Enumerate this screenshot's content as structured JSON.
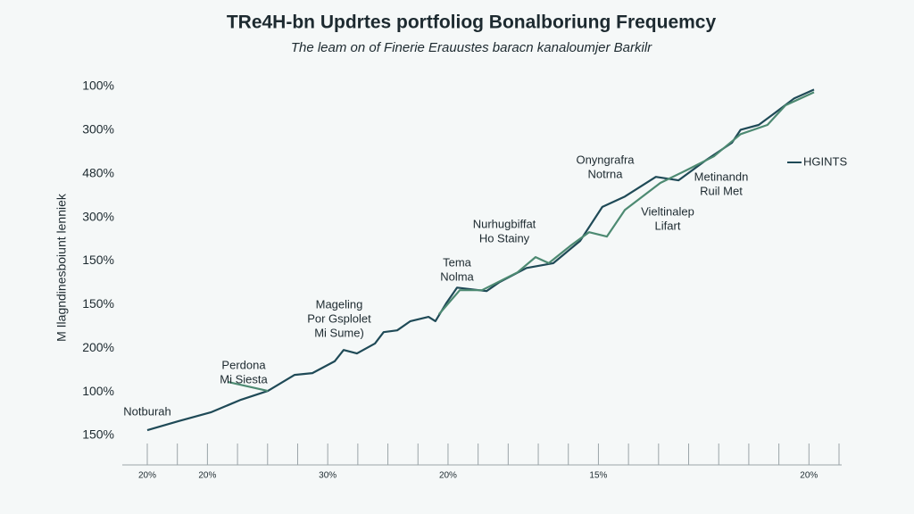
{
  "chart_data": {
    "type": "line",
    "title": "TRe4H-bn Updrtes portfoliog Bonalboriung Frequemcy",
    "subtitle": "The leam on of Finerie Erauustes baracn kanaloumjer Barkilr",
    "y_label": "M Ilagndinesboiunt lenniek",
    "xlim": [
      0,
      23
    ],
    "xticks": [
      0,
      1,
      2,
      3,
      4,
      5,
      6,
      7,
      8,
      9,
      10,
      11,
      12,
      13,
      14,
      15,
      16,
      17,
      18,
      19,
      20,
      21,
      22,
      23
    ],
    "xtick_labels": [
      {
        "value": 0,
        "label": "20%"
      },
      {
        "value": 2,
        "label": "20%"
      },
      {
        "value": 6,
        "label": "30%"
      },
      {
        "value": 10,
        "label": "20%"
      },
      {
        "value": 15,
        "label": "15%"
      },
      {
        "value": 22,
        "label": "20%"
      }
    ],
    "ylim": [
      0,
      8
    ],
    "yticks": [
      {
        "value": 0,
        "label": "150%"
      },
      {
        "value": 1,
        "label": "100%"
      },
      {
        "value": 2,
        "label": "200%"
      },
      {
        "value": 3,
        "label": "150%"
      },
      {
        "value": 4,
        "label": "150%"
      },
      {
        "value": 5,
        "label": "300%"
      },
      {
        "value": 6,
        "label": "480%"
      },
      {
        "value": 7,
        "label": "300%"
      },
      {
        "value": 8,
        "label": "100%"
      }
    ],
    "legend": "right",
    "series": [
      {
        "name": "HGINTS",
        "color": "#1f4a57",
        "x": [
          0,
          1.04,
          2.11,
          3.12,
          4.01,
          4.9,
          5.49,
          6.23,
          6.53,
          6.97,
          7.57,
          7.86,
          8.31,
          8.75,
          9.35,
          9.58,
          9.94,
          10.3,
          11.28,
          11.72,
          12.61,
          13.5,
          14.39,
          15.13,
          15.88,
          16.91,
          17.66,
          18.55,
          19.44,
          19.73,
          20.33,
          20.92,
          21.51,
          22.17
        ],
        "values": [
          0.12,
          0.33,
          0.53,
          0.82,
          1.02,
          1.39,
          1.43,
          1.7,
          1.96,
          1.88,
          2.11,
          2.37,
          2.41,
          2.62,
          2.72,
          2.62,
          3.03,
          3.39,
          3.31,
          3.52,
          3.84,
          3.95,
          4.46,
          5.24,
          5.48,
          5.93,
          5.85,
          6.3,
          6.71,
          7.01,
          7.12,
          7.42,
          7.73,
          7.93
        ]
      },
      {
        "color": "#4d8a72",
        "x": [
          2.67,
          4.01,
          7,
          9.7,
          10.39,
          11.13,
          12.31,
          12.91,
          13.35,
          14.09,
          14.69,
          15.28,
          15.88,
          17.06,
          17.95,
          18.84,
          19.73,
          20.62,
          21.22,
          22.17
        ],
        "values": [
          1.23,
          1.02,
          null,
          2.78,
          3.33,
          3.33,
          3.74,
          4.09,
          3.95,
          4.36,
          4.66,
          4.56,
          5.17,
          5.79,
          6.09,
          6.4,
          6.91,
          7.12,
          7.57,
          7.87
        ]
      }
    ],
    "annotations": [
      [
        "Notburah"
      ],
      [
        "Perdona",
        "Mi Siesta"
      ],
      [
        "Mageling",
        "Por Gsplolet",
        "Mi Sume)"
      ],
      [
        "Tema",
        "Nolma"
      ],
      [
        "Nurhugbiffat",
        "Ho Stainy"
      ],
      [
        "Onyngrafra",
        "Notrna"
      ],
      [
        "Vieltinalep",
        "Lifart"
      ],
      [
        "Metinandn",
        "Ruil Met"
      ]
    ]
  }
}
